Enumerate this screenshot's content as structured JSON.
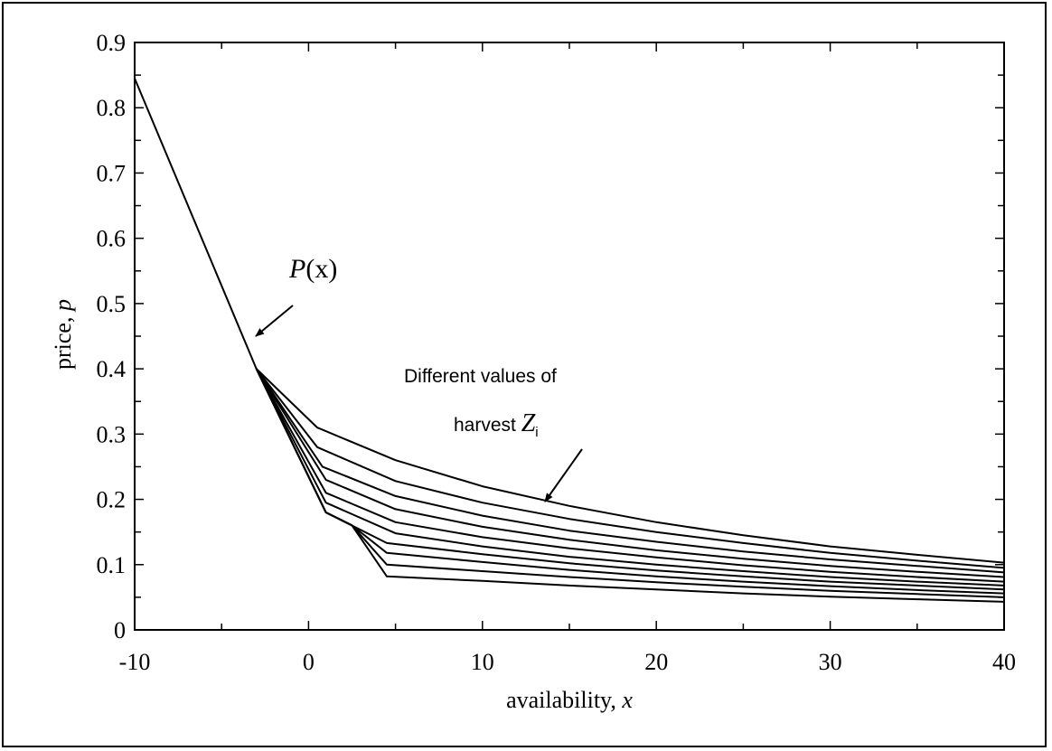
{
  "chart_data": {
    "type": "line",
    "xlabel": "availability, x",
    "ylabel": "price, p",
    "xlim": [
      -10,
      40
    ],
    "ylim": [
      0,
      0.9
    ],
    "x_ticks": [
      "-10",
      "0",
      "10",
      "20",
      "30",
      "40"
    ],
    "y_ticks": [
      "0",
      "0.1",
      "0.2",
      "0.3",
      "0.4",
      "0.5",
      "0.6",
      "0.7",
      "0.8",
      "0.9"
    ],
    "grid": false,
    "series": [
      {
        "name": "P(x)",
        "x": [
          -10,
          -3
        ],
        "y": [
          0.845,
          0.4
        ]
      },
      {
        "x": [
          -3,
          0.5,
          5,
          10,
          15,
          20,
          25,
          30,
          35,
          40
        ],
        "y": [
          0.4,
          0.31,
          0.26,
          0.22,
          0.19,
          0.165,
          0.145,
          0.128,
          0.115,
          0.103
        ]
      },
      {
        "x": [
          -3,
          0.5,
          5,
          10,
          15,
          20,
          25,
          30,
          35,
          40
        ],
        "y": [
          0.4,
          0.28,
          0.228,
          0.195,
          0.17,
          0.15,
          0.133,
          0.118,
          0.106,
          0.095
        ]
      },
      {
        "x": [
          -3,
          0.8,
          5,
          10,
          15,
          20,
          25,
          30,
          35,
          40
        ],
        "y": [
          0.4,
          0.25,
          0.205,
          0.175,
          0.152,
          0.135,
          0.12,
          0.108,
          0.098,
          0.088
        ]
      },
      {
        "x": [
          -3,
          1,
          5,
          10,
          15,
          20,
          25,
          30,
          35,
          40
        ],
        "y": [
          0.4,
          0.23,
          0.185,
          0.158,
          0.138,
          0.122,
          0.109,
          0.098,
          0.089,
          0.081
        ]
      },
      {
        "x": [
          -3,
          1,
          5,
          10,
          15,
          20,
          25,
          30,
          35,
          40
        ],
        "y": [
          0.4,
          0.21,
          0.165,
          0.142,
          0.125,
          0.111,
          0.099,
          0.089,
          0.081,
          0.074
        ]
      },
      {
        "x": [
          -3,
          1,
          5,
          10,
          15,
          20,
          25,
          30,
          35,
          40
        ],
        "y": [
          0.4,
          0.195,
          0.148,
          0.128,
          0.112,
          0.1,
          0.09,
          0.081,
          0.074,
          0.068
        ]
      },
      {
        "x": [
          -3,
          1,
          4.5,
          10,
          15,
          20,
          25,
          30,
          35,
          40
        ],
        "y": [
          0.4,
          0.18,
          0.133,
          0.116,
          0.102,
          0.091,
          0.082,
          0.074,
          0.068,
          0.062
        ]
      },
      {
        "x": [
          -3,
          1,
          2.5,
          4.5,
          10,
          15,
          20,
          25,
          30,
          35,
          40
        ],
        "y": [
          0.4,
          0.18,
          0.16,
          0.118,
          0.104,
          0.092,
          0.082,
          0.074,
          0.067,
          0.061,
          0.056
        ]
      },
      {
        "x": [
          -3,
          1,
          2.5,
          4.5,
          10,
          15,
          20,
          25,
          30,
          35,
          40
        ],
        "y": [
          0.4,
          0.18,
          0.16,
          0.1,
          0.09,
          0.081,
          0.073,
          0.066,
          0.06,
          0.055,
          0.05
        ]
      },
      {
        "x": [
          -3,
          1,
          2.5,
          4.5,
          10,
          15,
          20,
          25,
          30,
          35,
          40
        ],
        "y": [
          0.4,
          0.18,
          0.16,
          0.082,
          0.075,
          0.068,
          0.062,
          0.056,
          0.051,
          0.047,
          0.043
        ]
      }
    ],
    "annotations": [
      {
        "text_italic": "P",
        "text_rest": "(x)"
      },
      {
        "line1": "Different values of",
        "line2_prefix": "harvest ",
        "line2_var": "Z",
        "line2_sub": "i"
      }
    ]
  }
}
